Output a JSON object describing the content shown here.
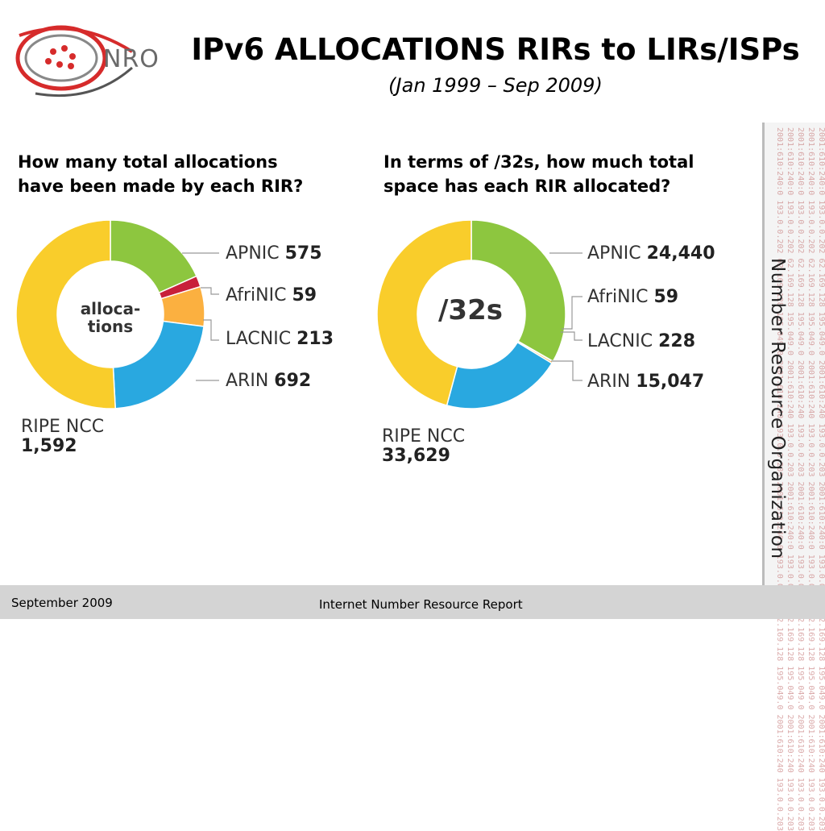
{
  "header": {
    "logo_text": "NRO",
    "title": "IPv6 ALLOCATIONS RIRs to LIRs/ISPs",
    "subtitle": "(Jan 1999 – Sep 2009)"
  },
  "questions": {
    "left": "How many total allocations\nhave been made by each RIR?",
    "right": "In terms of /32s, how much total\nspace has each RIR allocated?"
  },
  "sidebar": {
    "org_name": "Number Resource Organization",
    "ip_text": "2001:610:240:0 193.0.0.202 62.169.128 195.049.0 2001:610:240 193.0.0.203 2001:610:240:0 193.0.0.202 62.169.128 195.049.0 2001:610:240 193.0.0.203"
  },
  "footer": {
    "date": "September 2009",
    "report": "Internet Number Resource Report"
  },
  "colors": {
    "APNIC": "#8dc63f",
    "AfriNIC": "#c8203a",
    "LACNIC": "#fbb040",
    "ARIN": "#29a8e0",
    "RIPE NCC": "#f9cd2b"
  },
  "chart_data": [
    {
      "type": "pie",
      "center_label": "alloca-\ntions",
      "categories": [
        "APNIC",
        "AfriNIC",
        "LACNIC",
        "ARIN",
        "RIPE NCC"
      ],
      "values": [
        575,
        59,
        213,
        692,
        1592
      ],
      "value_labels": [
        "575",
        "59",
        "213",
        "692",
        "1,592"
      ]
    },
    {
      "type": "pie",
      "center_label": "/32s",
      "categories": [
        "APNIC",
        "AfriNIC",
        "LACNIC",
        "ARIN",
        "RIPE NCC"
      ],
      "values": [
        24440,
        59,
        228,
        15047,
        33629
      ],
      "value_labels": [
        "24,440",
        "59",
        "228",
        "15,047",
        "33,629"
      ]
    }
  ]
}
